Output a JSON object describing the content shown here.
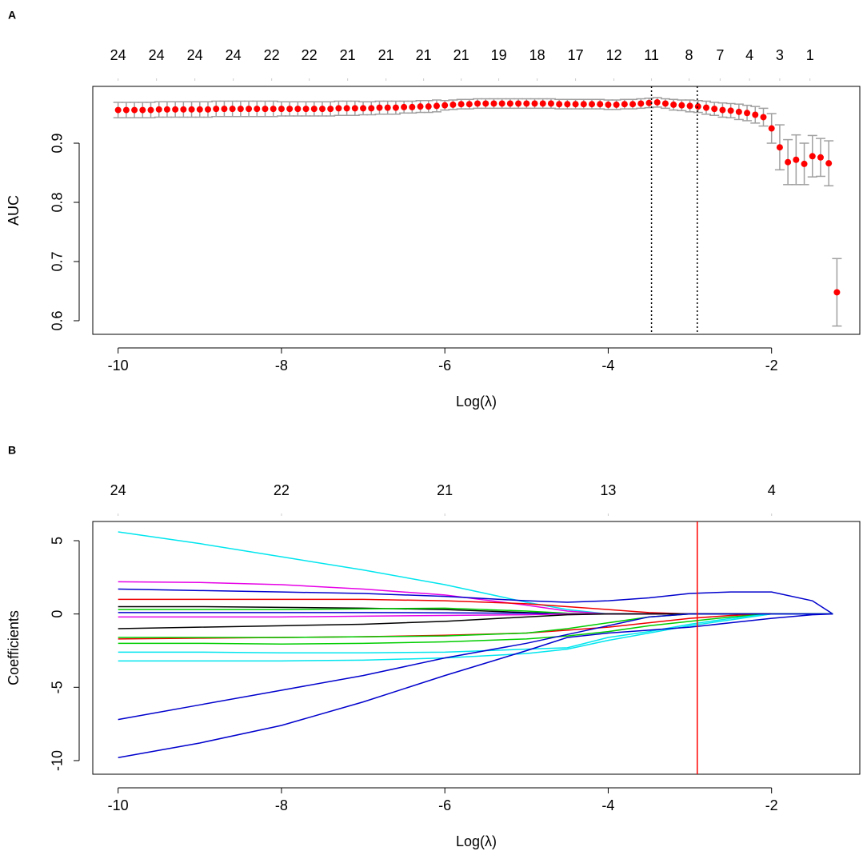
{
  "chart_data": [
    {
      "type": "scatter",
      "panel_label": "A",
      "x_label": "Log(λ)",
      "y_label": "AUC",
      "xlim": [
        -10.31,
        -0.92
      ],
      "ylim": [
        0.577,
        0.996
      ],
      "xticks": [
        -10,
        -8,
        -6,
        -4,
        -2
      ],
      "yticks": [
        0.6,
        0.7,
        0.8,
        0.9
      ],
      "top_ticks": [
        {
          "value": -10,
          "label": "24"
        },
        {
          "value": -9.53,
          "label": "24"
        },
        {
          "value": -9.06,
          "label": "24"
        },
        {
          "value": -8.59,
          "label": "24"
        },
        {
          "value": -8.12,
          "label": "22"
        },
        {
          "value": -7.66,
          "label": "22"
        },
        {
          "value": -7.19,
          "label": "21"
        },
        {
          "value": -6.72,
          "label": "21"
        },
        {
          "value": -6.26,
          "label": "21"
        },
        {
          "value": -5.8,
          "label": "21"
        },
        {
          "value": -5.34,
          "label": "19"
        },
        {
          "value": -4.87,
          "label": "18"
        },
        {
          "value": -4.4,
          "label": "17"
        },
        {
          "value": -3.93,
          "label": "12"
        },
        {
          "value": -3.47,
          "label": "11"
        },
        {
          "value": -3.01,
          "label": "8"
        },
        {
          "value": -2.63,
          "label": "7"
        },
        {
          "value": -2.27,
          "label": "4"
        },
        {
          "value": -1.9,
          "label": "3"
        },
        {
          "value": -1.53,
          "label": "1"
        }
      ],
      "vlines": [
        -3.47,
        -2.91
      ],
      "color": "#ff0000",
      "error_color": "#a0a0a0",
      "x": [
        -10.0,
        -9.9,
        -9.8,
        -9.7,
        -9.6,
        -9.5,
        -9.4,
        -9.3,
        -9.2,
        -9.1,
        -9.0,
        -8.9,
        -8.8,
        -8.7,
        -8.6,
        -8.5,
        -8.4,
        -8.3,
        -8.2,
        -8.1,
        -8.0,
        -7.9,
        -7.8,
        -7.7,
        -7.6,
        -7.5,
        -7.4,
        -7.3,
        -7.2,
        -7.1,
        -7.0,
        -6.9,
        -6.8,
        -6.7,
        -6.6,
        -6.5,
        -6.4,
        -6.3,
        -6.2,
        -6.1,
        -6.0,
        -5.9,
        -5.8,
        -5.7,
        -5.6,
        -5.5,
        -5.4,
        -5.3,
        -5.2,
        -5.1,
        -5.0,
        -4.9,
        -4.8,
        -4.7,
        -4.6,
        -4.5,
        -4.4,
        -4.3,
        -4.2,
        -4.1,
        -4.0,
        -3.9,
        -3.8,
        -3.7,
        -3.6,
        -3.5,
        -3.4,
        -3.3,
        -3.2,
        -3.1,
        -3.0,
        -2.9,
        -2.8,
        -2.7,
        -2.6,
        -2.5,
        -2.4,
        -2.3,
        -2.2,
        -2.1,
        -2.0,
        -1.9,
        -1.8,
        -1.7,
        -1.6,
        -1.5,
        -1.4,
        -1.3,
        -1.2
      ],
      "values": [
        0.956,
        0.956,
        0.956,
        0.956,
        0.956,
        0.957,
        0.957,
        0.957,
        0.957,
        0.957,
        0.957,
        0.957,
        0.958,
        0.958,
        0.958,
        0.958,
        0.958,
        0.958,
        0.958,
        0.958,
        0.958,
        0.958,
        0.958,
        0.958,
        0.958,
        0.958,
        0.958,
        0.959,
        0.959,
        0.959,
        0.959,
        0.959,
        0.96,
        0.96,
        0.96,
        0.961,
        0.961,
        0.962,
        0.962,
        0.963,
        0.964,
        0.965,
        0.966,
        0.966,
        0.967,
        0.967,
        0.967,
        0.967,
        0.967,
        0.967,
        0.967,
        0.967,
        0.967,
        0.967,
        0.966,
        0.966,
        0.966,
        0.966,
        0.966,
        0.966,
        0.965,
        0.965,
        0.966,
        0.966,
        0.967,
        0.968,
        0.969,
        0.967,
        0.965,
        0.964,
        0.963,
        0.962,
        0.96,
        0.958,
        0.956,
        0.955,
        0.953,
        0.951,
        0.948,
        0.944,
        0.925,
        0.893,
        0.868,
        0.872,
        0.865,
        0.878,
        0.876,
        0.866,
        0.648
      ],
      "errors": [
        0.013,
        0.013,
        0.013,
        0.013,
        0.013,
        0.013,
        0.013,
        0.013,
        0.013,
        0.013,
        0.013,
        0.013,
        0.013,
        0.013,
        0.013,
        0.013,
        0.013,
        0.013,
        0.013,
        0.013,
        0.012,
        0.012,
        0.012,
        0.012,
        0.012,
        0.012,
        0.012,
        0.012,
        0.012,
        0.012,
        0.011,
        0.011,
        0.011,
        0.011,
        0.011,
        0.01,
        0.01,
        0.01,
        0.01,
        0.01,
        0.008,
        0.008,
        0.008,
        0.008,
        0.008,
        0.008,
        0.008,
        0.008,
        0.008,
        0.008,
        0.008,
        0.008,
        0.008,
        0.008,
        0.008,
        0.008,
        0.008,
        0.008,
        0.008,
        0.008,
        0.008,
        0.008,
        0.008,
        0.008,
        0.008,
        0.008,
        0.008,
        0.008,
        0.009,
        0.009,
        0.01,
        0.01,
        0.011,
        0.011,
        0.012,
        0.012,
        0.013,
        0.013,
        0.014,
        0.015,
        0.025,
        0.038,
        0.038,
        0.042,
        0.035,
        0.035,
        0.032,
        0.038,
        0.057
      ]
    },
    {
      "type": "line",
      "panel_label": "B",
      "x_label": "Log(λ)",
      "y_label": "Coefficients",
      "xlim": [
        -10.31,
        -0.92
      ],
      "ylim": [
        -10.93,
        6.31
      ],
      "xticks": [
        -10,
        -8,
        -6,
        -4,
        -2
      ],
      "yticks": [
        -10,
        -5,
        0,
        5
      ],
      "top_ticks": [
        {
          "value": -10,
          "label": "24"
        },
        {
          "value": -8,
          "label": "22"
        },
        {
          "value": -6,
          "label": "21"
        },
        {
          "value": -4,
          "label": "13"
        },
        {
          "value": -2,
          "label": "4"
        }
      ],
      "vlines": [
        -2.91
      ],
      "vline_color": "#ff0000",
      "x": [
        -10,
        -9,
        -8,
        -7,
        -6,
        -5,
        -4.5,
        -4,
        -3.5,
        -3,
        -2.5,
        -2,
        -1.5,
        -1.25
      ],
      "series": [
        {
          "color": "#00e5ee",
          "values": [
            5.6,
            4.8,
            3.9,
            3.0,
            2.0,
            0.8,
            0.3,
            0,
            0,
            0,
            0,
            0,
            0,
            0
          ]
        },
        {
          "color": "#e600e6",
          "values": [
            2.2,
            2.15,
            2.0,
            1.7,
            1.3,
            0.6,
            0.2,
            0,
            0,
            0,
            0,
            0,
            0,
            0
          ]
        },
        {
          "color": "#0000cd",
          "values": [
            1.7,
            1.6,
            1.5,
            1.4,
            1.2,
            0.9,
            0.8,
            0.9,
            1.1,
            1.4,
            1.5,
            1.5,
            0.9,
            0
          ]
        },
        {
          "color": "#ee0000",
          "values": [
            1.0,
            1.0,
            1.0,
            1.0,
            0.9,
            0.7,
            0.5,
            0.3,
            0.1,
            0,
            0,
            0,
            0,
            0
          ]
        },
        {
          "color": "#000000",
          "values": [
            0.5,
            0.5,
            0.45,
            0.4,
            0.3,
            0.1,
            0,
            0,
            0,
            0,
            0,
            0,
            0,
            0
          ]
        },
        {
          "color": "#00cd00",
          "values": [
            0.3,
            0.3,
            0.3,
            0.35,
            0.4,
            0.2,
            0.05,
            0,
            0,
            0,
            0,
            0,
            0,
            0
          ]
        },
        {
          "color": "#0000cd",
          "values": [
            0.1,
            0.1,
            0.1,
            0.1,
            0.08,
            0.05,
            0,
            0,
            0,
            0,
            0,
            0,
            0,
            0
          ]
        },
        {
          "color": "#e600e6",
          "values": [
            -0.2,
            -0.2,
            -0.2,
            -0.15,
            -0.1,
            -0.05,
            0,
            0,
            0,
            0,
            0,
            0,
            0,
            0
          ]
        },
        {
          "color": "#000000",
          "values": [
            -1.0,
            -0.9,
            -0.8,
            -0.7,
            -0.5,
            -0.2,
            -0.05,
            0,
            0,
            0,
            0,
            0,
            0,
            0
          ]
        },
        {
          "color": "#ee0000",
          "values": [
            -1.7,
            -1.65,
            -1.6,
            -1.55,
            -1.45,
            -1.3,
            -1.1,
            -0.9,
            -0.6,
            -0.3,
            -0.1,
            0,
            0,
            0
          ]
        },
        {
          "color": "#00cd00",
          "values": [
            -1.6,
            -1.6,
            -1.6,
            -1.55,
            -1.5,
            -1.3,
            -1.0,
            -0.6,
            -0.2,
            0,
            0,
            0,
            0,
            0
          ]
        },
        {
          "color": "#00cd00",
          "values": [
            -2.0,
            -2.0,
            -2.05,
            -2.0,
            -1.9,
            -1.7,
            -1.5,
            -1.2,
            -0.8,
            -0.5,
            -0.2,
            0,
            0,
            0
          ]
        },
        {
          "color": "#00e5ee",
          "values": [
            -2.6,
            -2.6,
            -2.65,
            -2.65,
            -2.6,
            -2.4,
            -2.3,
            -1.6,
            -1.2,
            -0.7,
            -0.3,
            0,
            0,
            0
          ]
        },
        {
          "color": "#00e5ee",
          "values": [
            -3.2,
            -3.2,
            -3.2,
            -3.15,
            -3.0,
            -2.7,
            -2.4,
            -1.8,
            -1.3,
            -0.8,
            -0.4,
            0,
            0,
            0
          ]
        },
        {
          "color": "#0000cd",
          "values": [
            -7.2,
            -6.2,
            -5.2,
            -4.2,
            -3.0,
            -2.0,
            -1.4,
            -0.8,
            -0.2,
            0,
            0,
            0,
            0,
            0
          ]
        },
        {
          "color": "#0000cd",
          "values": [
            -9.8,
            -8.8,
            -7.6,
            -6.0,
            -4.2,
            -2.5,
            -1.6,
            -1.3,
            -1.1,
            -0.9,
            -0.6,
            -0.3,
            -0.05,
            0
          ]
        }
      ]
    }
  ]
}
